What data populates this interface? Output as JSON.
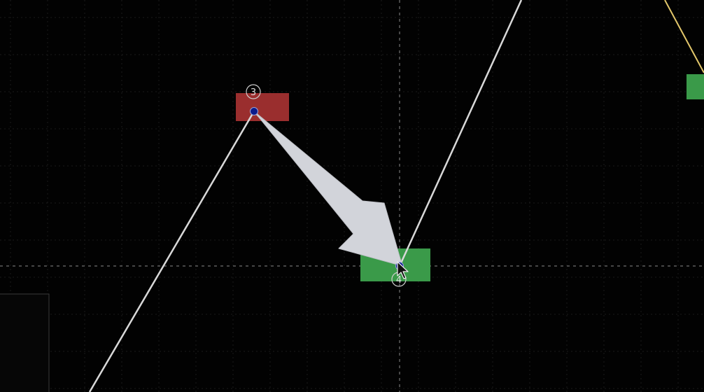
{
  "colors": {
    "background": "#020202",
    "grid": "#1a1a1a",
    "crosshair": "#8a8a8a",
    "path_white": "#d8d8d8",
    "path_yellow": "#e2c76b",
    "red_block": "#9a2e2e",
    "green_block": "#3a9a49",
    "point_fill": "#0b1b8c",
    "arrow_fill": "#d2d4da",
    "panel_border": "#3a3a3a"
  },
  "points": [
    {
      "label": "3"
    },
    {
      "label": "4"
    }
  ],
  "icons": {
    "cursor": "mouse-pointer-icon",
    "arrow": "drag-direction-arrow"
  }
}
